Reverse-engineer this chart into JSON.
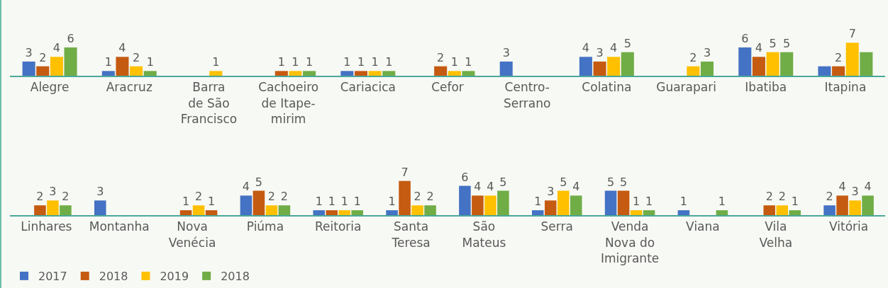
{
  "chart_data": [
    {
      "type": "bar",
      "categories": [
        "Alegre",
        "Aracruz",
        "Barra\nde São\nFrancisco",
        "Cachoeiro\nde Itape-\nmirim",
        "Cariacica",
        "Cefor",
        "Centro-\nSerrano",
        "Colatina",
        "Guarapari",
        "Ibatiba",
        "Itapina"
      ],
      "series": [
        {
          "color": "#4472c4",
          "values": [
            3,
            1,
            null,
            null,
            1,
            null,
            3,
            4,
            null,
            6,
            2
          ],
          "value_labels": [
            "3",
            "1",
            null,
            null,
            "1",
            null,
            "3",
            "4",
            null,
            "6",
            null
          ]
        },
        {
          "color": "#c55a11",
          "values": [
            2,
            4,
            null,
            1,
            1,
            2,
            null,
            3,
            null,
            4,
            2
          ],
          "value_labels": [
            "2",
            "4",
            null,
            "1",
            "1",
            "2",
            null,
            "3",
            null,
            "4",
            "2"
          ]
        },
        {
          "color": "#ffc000",
          "values": [
            4,
            2,
            1,
            1,
            1,
            1,
            null,
            4,
            2,
            5,
            7
          ],
          "value_labels": [
            "4",
            "2",
            "1",
            "1",
            "1",
            "1",
            null,
            "4",
            "2",
            "5",
            "7"
          ]
        },
        {
          "color": "#70ad47",
          "values": [
            6,
            1,
            null,
            1,
            1,
            1,
            null,
            5,
            3,
            5,
            5
          ],
          "value_labels": [
            "6",
            "1",
            null,
            "1",
            "1",
            "1",
            null,
            "5",
            "3",
            "5",
            null
          ]
        }
      ],
      "legend": false
    },
    {
      "type": "bar",
      "categories": [
        "Linhares",
        "Montanha",
        "Nova\nVenécia",
        "Piúma",
        "Reitoria",
        "Santa\nTeresa",
        "São\nMateus",
        "Serra",
        "Venda\nNova do\nImigrante",
        "Viana",
        "Vila\nVelha",
        "Vitória"
      ],
      "series": [
        {
          "name": "2017",
          "color": "#4472c4",
          "values": [
            null,
            3,
            null,
            4,
            1,
            1,
            6,
            1,
            5,
            1,
            null,
            2
          ],
          "value_labels": [
            null,
            "3",
            null,
            "4",
            "1",
            "1",
            "6",
            "1",
            "5",
            "1",
            null,
            "2"
          ]
        },
        {
          "name": "2018",
          "color": "#c55a11",
          "values": [
            2,
            null,
            1,
            5,
            1,
            7,
            4,
            3,
            5,
            null,
            2,
            4
          ],
          "value_labels": [
            "2",
            null,
            "1",
            "5",
            "1",
            "7",
            "4",
            "3",
            "5",
            null,
            "2",
            "4"
          ]
        },
        {
          "name": "2019",
          "color": "#ffc000",
          "values": [
            3,
            null,
            2,
            2,
            1,
            2,
            4,
            5,
            1,
            null,
            2,
            3
          ],
          "value_labels": [
            "3",
            null,
            "2",
            "2",
            "1",
            "2",
            "4",
            "5",
            "1",
            null,
            "2",
            "3"
          ]
        },
        {
          "name": "2018",
          "color": "#70ad47",
          "colors": [
            null,
            null,
            "#c55a11",
            null,
            null,
            null,
            null,
            null,
            null,
            null,
            null,
            null
          ],
          "values": [
            2,
            null,
            1,
            2,
            1,
            2,
            5,
            4,
            1,
            1,
            1,
            4
          ],
          "value_labels": [
            "2",
            null,
            "1",
            "2",
            "1",
            "2",
            "5",
            "4",
            "1",
            "1",
            "1",
            "4"
          ]
        }
      ],
      "legend": "bottom left"
    }
  ]
}
